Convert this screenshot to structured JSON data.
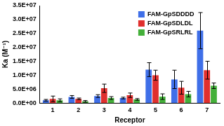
{
  "chart_data": {
    "type": "bar",
    "categories": [
      "1",
      "2",
      "3",
      "4",
      "5",
      "6",
      "7"
    ],
    "x_label": "Receptor",
    "y_label": "Ka (M⁻¹)",
    "series": [
      {
        "name": "FAM-GpSDDDD",
        "color": "#3f6fe8",
        "values": [
          1000000,
          2200000,
          2500000,
          1800000,
          12000000,
          8500000,
          26000000
        ],
        "errors": [
          300000,
          500000,
          500000,
          300000,
          2500000,
          3300000,
          6500000
        ]
      },
      {
        "name": "FAM-GpSDLDL",
        "color": "#e0302e",
        "values": [
          1500000,
          1500000,
          5300000,
          2800000,
          10000000,
          5500000,
          11800000
        ],
        "errors": [
          1000000,
          300000,
          1500000,
          800000,
          1800000,
          2300000,
          3200000
        ]
      },
      {
        "name": "FAM-GpSRLRL",
        "color": "#44b03a",
        "values": [
          1000000,
          600000,
          1800000,
          1300000,
          2300000,
          3200000,
          6200000
        ],
        "errors": [
          500000,
          300000,
          500000,
          300000,
          1000000,
          1000000,
          1000000
        ]
      }
    ],
    "ylim": [
      0,
      35000000
    ],
    "yticks": [
      {
        "value": 0,
        "label": "0.0E+00"
      },
      {
        "value": 5000000,
        "label": "5.0E+06"
      },
      {
        "value": 10000000,
        "label": "1.0E+07"
      },
      {
        "value": 15000000,
        "label": "1.5E+07"
      },
      {
        "value": 20000000,
        "label": "2.0E+07"
      },
      {
        "value": 25000000,
        "label": "2.5E+07"
      },
      {
        "value": 30000000,
        "label": "3.0E+07"
      },
      {
        "value": 35000000,
        "label": "3.5E+07"
      }
    ],
    "grid": false,
    "legend": "upper right"
  }
}
